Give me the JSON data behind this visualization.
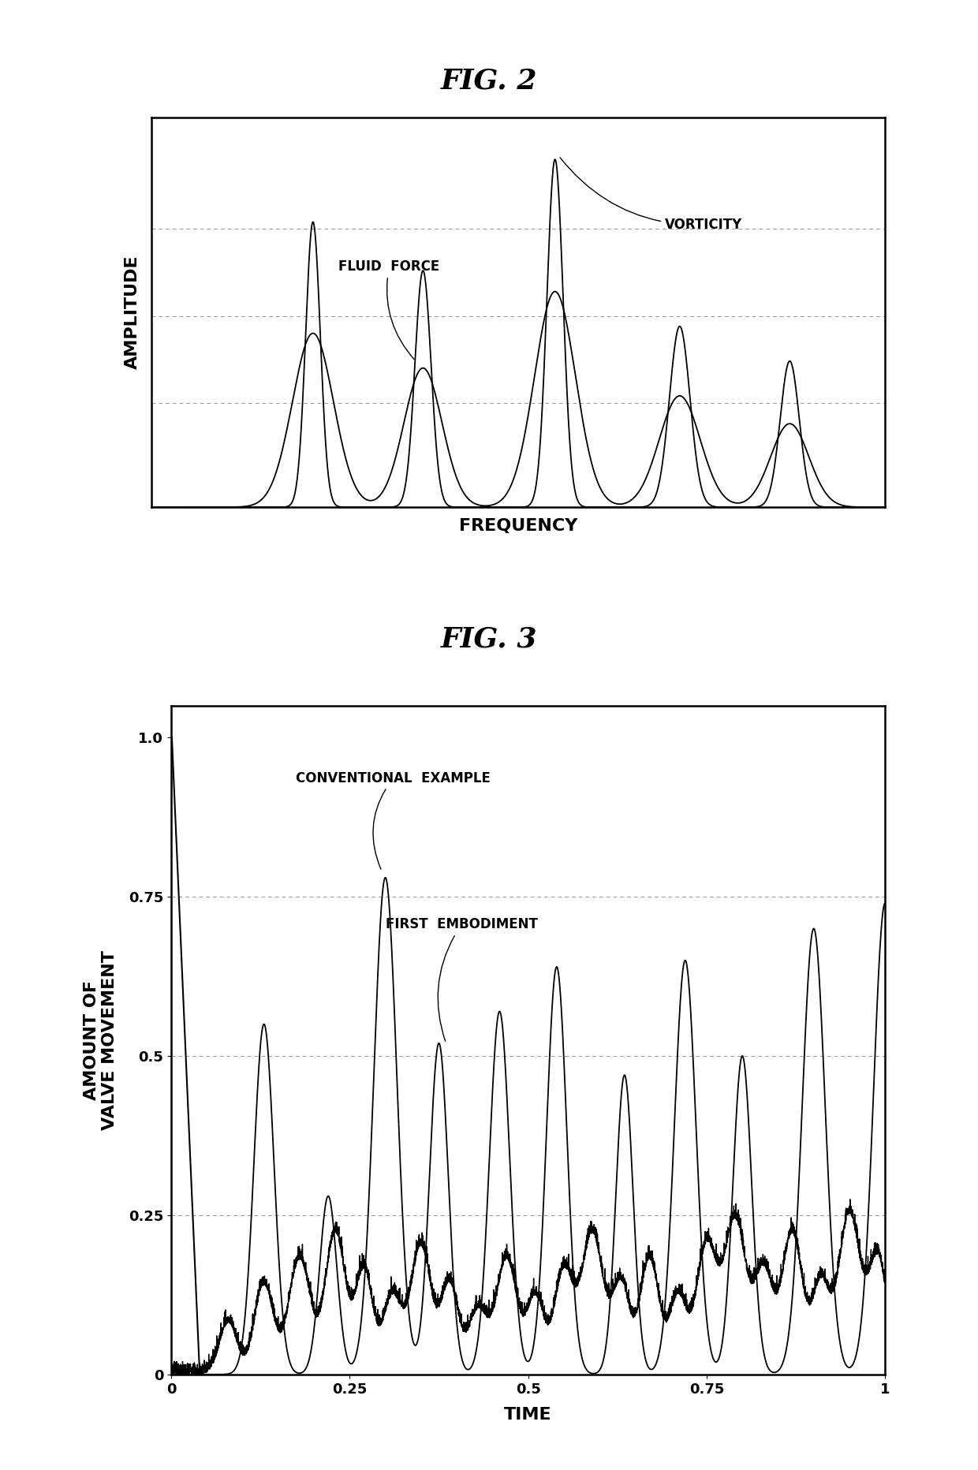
{
  "fig2_title": "FIG. 2",
  "fig3_title": "FIG. 3",
  "fig2_xlabel": "FREQUENCY",
  "fig2_ylabel": "AMPLITUDE",
  "fig3_xlabel": "TIME",
  "fig3_ylabel": "AMOUNT OF\nVALVE MOVEMENT",
  "fig3_yticks": [
    0,
    0.25,
    0.5,
    0.75,
    1.0
  ],
  "fig3_xticks": [
    0,
    0.25,
    0.5,
    0.75,
    1.0
  ],
  "fig3_ytick_labels": [
    "0",
    "0.25",
    "0.5",
    "0.75",
    "1.0"
  ],
  "fig3_xtick_labels": [
    "0",
    "0.25",
    "0.5",
    "0.75",
    "1"
  ],
  "label_fluid_force": "FLUID  FORCE",
  "label_vorticity": "VORTICITY",
  "label_conventional": "CONVENTIONAL  EXAMPLE",
  "label_first_embodiment": "FIRST  EMBODIMENT",
  "background_color": "#ffffff",
  "line_color": "#000000",
  "grid_color": "#999999",
  "title_fontsize": 26,
  "label_fontsize": 14,
  "annotation_fontsize": 12,
  "tick_fontsize": 13
}
